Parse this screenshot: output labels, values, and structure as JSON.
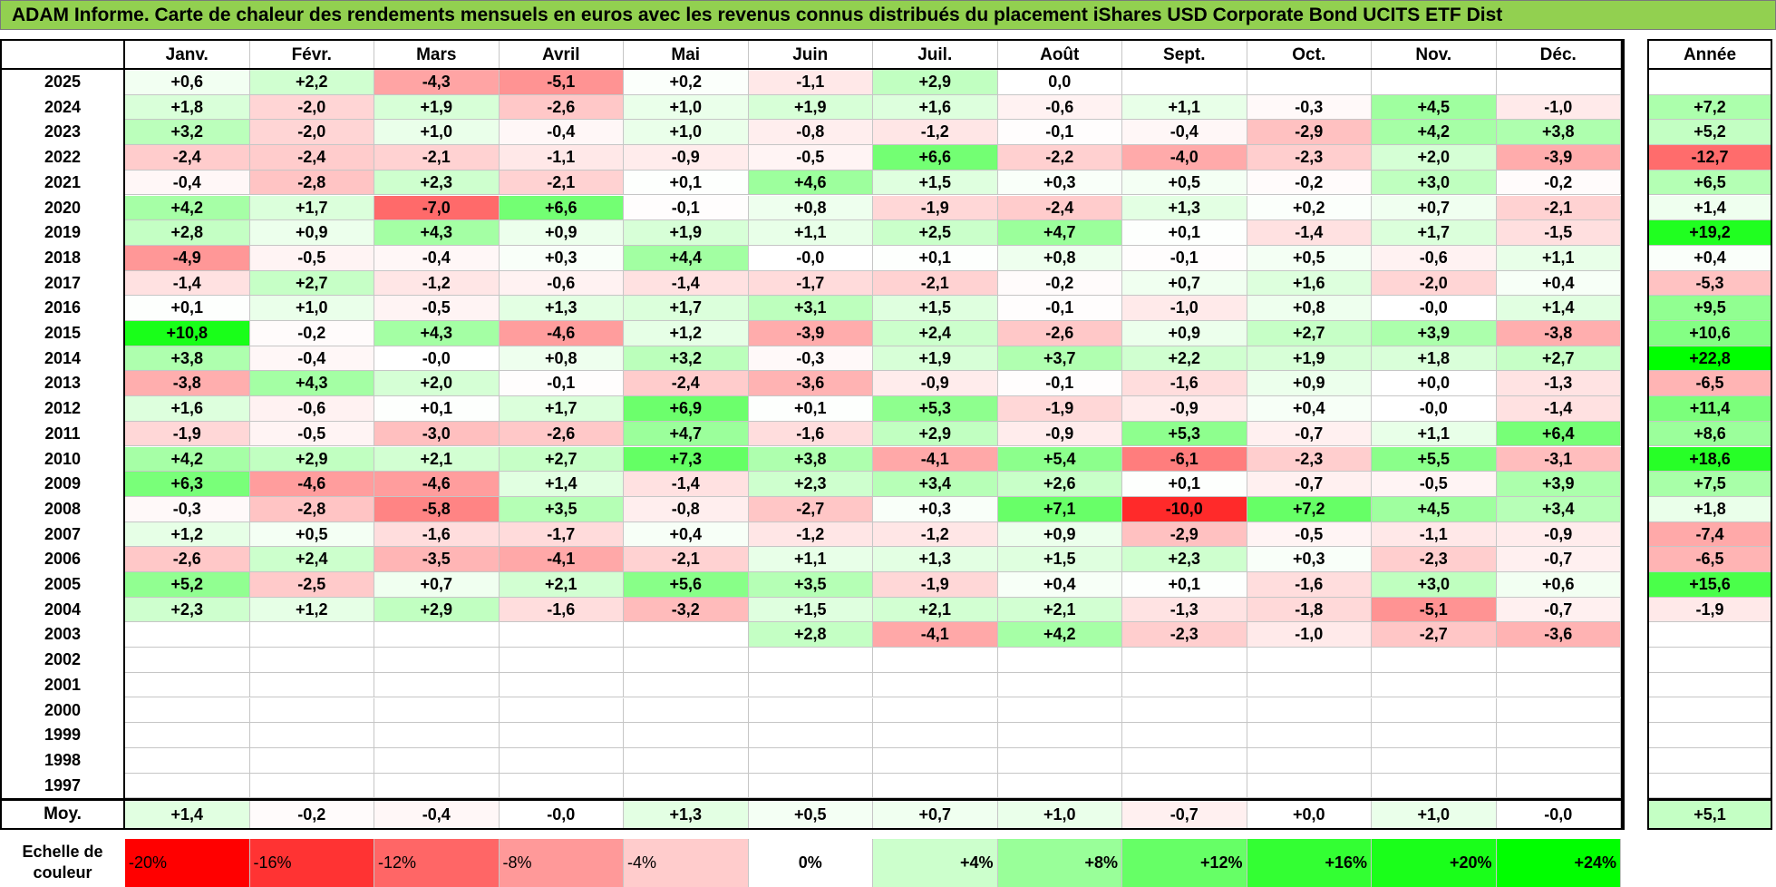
{
  "title": "ADAM Informe. Carte de chaleur des rendements mensuels en euros avec les revenus connus distribués du placement iShares USD Corporate Bond UCITS ETF Dist",
  "chart_data": {
    "type": "heatmap",
    "title": "ADAM Informe. Carte de chaleur des rendements mensuels en euros avec les revenus connus distribués du placement iShares USD Corporate Bond UCITS ETF Dist",
    "months": [
      "Janv.",
      "Févr.",
      "Mars",
      "Avril",
      "Mai",
      "Juin",
      "Juil.",
      "Août",
      "Sept.",
      "Oct.",
      "Nov.",
      "Déc."
    ],
    "year_header": "Année",
    "avg_label": "Moy.",
    "rows": [
      {
        "year": "2025",
        "values": [
          "+0,6",
          "+2,2",
          "-4,3",
          "-5,1",
          "+0,2",
          "-1,1",
          "+2,9",
          "0,0",
          "",
          "",
          "",
          ""
        ],
        "annual": ""
      },
      {
        "year": "2024",
        "values": [
          "+1,8",
          "-2,0",
          "+1,9",
          "-2,6",
          "+1,0",
          "+1,9",
          "+1,6",
          "-0,6",
          "+1,1",
          "-0,3",
          "+4,5",
          "-1,0"
        ],
        "annual": "+7,2"
      },
      {
        "year": "2023",
        "values": [
          "+3,2",
          "-2,0",
          "+1,0",
          "-0,4",
          "+1,0",
          "-0,8",
          "-1,2",
          "-0,1",
          "-0,4",
          "-2,9",
          "+4,2",
          "+3,8"
        ],
        "annual": "+5,2"
      },
      {
        "year": "2022",
        "values": [
          "-2,4",
          "-2,4",
          "-2,1",
          "-1,1",
          "-0,9",
          "-0,5",
          "+6,6",
          "-2,2",
          "-4,0",
          "-2,3",
          "+2,0",
          "-3,9"
        ],
        "annual": "-12,7"
      },
      {
        "year": "2021",
        "values": [
          "-0,4",
          "-2,8",
          "+2,3",
          "-2,1",
          "+0,1",
          "+4,6",
          "+1,5",
          "+0,3",
          "+0,5",
          "-0,2",
          "+3,0",
          "-0,2"
        ],
        "annual": "+6,5"
      },
      {
        "year": "2020",
        "values": [
          "+4,2",
          "+1,7",
          "-7,0",
          "+6,6",
          "-0,1",
          "+0,8",
          "-1,9",
          "-2,4",
          "+1,3",
          "+0,2",
          "+0,7",
          "-2,1"
        ],
        "annual": "+1,4"
      },
      {
        "year": "2019",
        "values": [
          "+2,8",
          "+0,9",
          "+4,3",
          "+0,9",
          "+1,9",
          "+1,1",
          "+2,5",
          "+4,7",
          "+0,1",
          "-1,4",
          "+1,7",
          "-1,5"
        ],
        "annual": "+19,2"
      },
      {
        "year": "2018",
        "values": [
          "-4,9",
          "-0,5",
          "-0,4",
          "+0,3",
          "+4,4",
          "-0,0",
          "+0,1",
          "+0,8",
          "-0,1",
          "+0,5",
          "-0,6",
          "+1,1"
        ],
        "annual": "+0,4"
      },
      {
        "year": "2017",
        "values": [
          "-1,4",
          "+2,7",
          "-1,2",
          "-0,6",
          "-1,4",
          "-1,7",
          "-2,1",
          "-0,2",
          "+0,7",
          "+1,6",
          "-2,0",
          "+0,4"
        ],
        "annual": "-5,3"
      },
      {
        "year": "2016",
        "values": [
          "+0,1",
          "+1,0",
          "-0,5",
          "+1,3",
          "+1,7",
          "+3,1",
          "+1,5",
          "-0,1",
          "-1,0",
          "+0,8",
          "-0,0",
          "+1,4"
        ],
        "annual": "+9,5"
      },
      {
        "year": "2015",
        "values": [
          "+10,8",
          "-0,2",
          "+4,3",
          "-4,6",
          "+1,2",
          "-3,9",
          "+2,4",
          "-2,6",
          "+0,9",
          "+2,7",
          "+3,9",
          "-3,8"
        ],
        "annual": "+10,6"
      },
      {
        "year": "2014",
        "values": [
          "+3,8",
          "-0,4",
          "-0,0",
          "+0,8",
          "+3,2",
          "-0,3",
          "+1,9",
          "+3,7",
          "+2,2",
          "+1,9",
          "+1,8",
          "+2,7"
        ],
        "annual": "+22,8"
      },
      {
        "year": "2013",
        "values": [
          "-3,8",
          "+4,3",
          "+2,0",
          "-0,1",
          "-2,4",
          "-3,6",
          "-0,9",
          "-0,1",
          "-1,6",
          "+0,9",
          "+0,0",
          "-1,3"
        ],
        "annual": "-6,5"
      },
      {
        "year": "2012",
        "values": [
          "+1,6",
          "-0,6",
          "+0,1",
          "+1,7",
          "+6,9",
          "+0,1",
          "+5,3",
          "-1,9",
          "-0,9",
          "+0,4",
          "-0,0",
          "-1,4"
        ],
        "annual": "+11,4"
      },
      {
        "year": "2011",
        "values": [
          "-1,9",
          "-0,5",
          "-3,0",
          "-2,6",
          "+4,7",
          "-1,6",
          "+2,9",
          "-0,9",
          "+5,3",
          "-0,7",
          "+1,1",
          "+6,4"
        ],
        "annual": "+8,6"
      },
      {
        "year": "2010",
        "values": [
          "+4,2",
          "+2,9",
          "+2,1",
          "+2,7",
          "+7,3",
          "+3,8",
          "-4,1",
          "+5,4",
          "-6,1",
          "-2,3",
          "+5,5",
          "-3,1"
        ],
        "annual": "+18,6"
      },
      {
        "year": "2009",
        "values": [
          "+6,3",
          "-4,6",
          "-4,6",
          "+1,4",
          "-1,4",
          "+2,3",
          "+3,4",
          "+2,6",
          "+0,1",
          "-0,7",
          "-0,5",
          "+3,9"
        ],
        "annual": "+7,5"
      },
      {
        "year": "2008",
        "values": [
          "-0,3",
          "-2,8",
          "-5,8",
          "+3,5",
          "-0,8",
          "-2,7",
          "+0,3",
          "+7,1",
          "-10,0",
          "+7,2",
          "+4,5",
          "+3,4"
        ],
        "annual": "+1,8"
      },
      {
        "year": "2007",
        "values": [
          "+1,2",
          "+0,5",
          "-1,6",
          "-1,7",
          "+0,4",
          "-1,2",
          "-1,2",
          "+0,9",
          "-2,9",
          "-0,5",
          "-1,1",
          "-0,9"
        ],
        "annual": "-7,4"
      },
      {
        "year": "2006",
        "values": [
          "-2,6",
          "+2,4",
          "-3,5",
          "-4,1",
          "-2,1",
          "+1,1",
          "+1,3",
          "+1,5",
          "+2,3",
          "+0,3",
          "-2,3",
          "-0,7"
        ],
        "annual": "-6,5"
      },
      {
        "year": "2005",
        "values": [
          "+5,2",
          "-2,5",
          "+0,7",
          "+2,1",
          "+5,6",
          "+3,5",
          "-1,9",
          "+0,4",
          "+0,1",
          "-1,6",
          "+3,0",
          "+0,6"
        ],
        "annual": "+15,6"
      },
      {
        "year": "2004",
        "values": [
          "+2,3",
          "+1,2",
          "+2,9",
          "-1,6",
          "-3,2",
          "+1,5",
          "+2,1",
          "+2,1",
          "-1,3",
          "-1,8",
          "-5,1",
          "-0,7"
        ],
        "annual": "-1,9"
      },
      {
        "year": "2003",
        "values": [
          "",
          "",
          "",
          "",
          "",
          "+2,8",
          "-4,1",
          "+4,2",
          "-2,3",
          "-1,0",
          "-2,7",
          "-3,6"
        ],
        "annual": ""
      },
      {
        "year": "2002",
        "values": [
          "",
          "",
          "",
          "",
          "",
          "",
          "",
          "",
          "",
          "",
          "",
          ""
        ],
        "annual": ""
      },
      {
        "year": "2001",
        "values": [
          "",
          "",
          "",
          "",
          "",
          "",
          "",
          "",
          "",
          "",
          "",
          ""
        ],
        "annual": ""
      },
      {
        "year": "2000",
        "values": [
          "",
          "",
          "",
          "",
          "",
          "",
          "",
          "",
          "",
          "",
          "",
          ""
        ],
        "annual": ""
      },
      {
        "year": "1999",
        "values": [
          "",
          "",
          "",
          "",
          "",
          "",
          "",
          "",
          "",
          "",
          "",
          ""
        ],
        "annual": ""
      },
      {
        "year": "1998",
        "values": [
          "",
          "",
          "",
          "",
          "",
          "",
          "",
          "",
          "",
          "",
          "",
          ""
        ],
        "annual": ""
      },
      {
        "year": "1997",
        "values": [
          "",
          "",
          "",
          "",
          "",
          "",
          "",
          "",
          "",
          "",
          "",
          ""
        ],
        "annual": ""
      }
    ],
    "averages": {
      "values": [
        "+1,4",
        "-0,2",
        "-0,4",
        "-0,0",
        "+1,3",
        "+0,5",
        "+0,7",
        "+1,0",
        "-0,7",
        "+0,0",
        "+1,0",
        "-0,0"
      ],
      "annual": "+5,1"
    },
    "color_scale": {
      "title_line1": "Echelle de",
      "title_line2": "couleur",
      "stops": [
        {
          "label": "-20%",
          "value": -20,
          "color": "#ff0000"
        },
        {
          "label": "-16%",
          "value": -16,
          "color": "#ff3333"
        },
        {
          "label": "-12%",
          "value": -12,
          "color": "#ff6666"
        },
        {
          "label": "-8%",
          "value": -8,
          "color": "#ff9999"
        },
        {
          "label": "-4%",
          "value": -4,
          "color": "#ffcccc"
        },
        {
          "label": "0%",
          "value": 0,
          "color": "#ffffff"
        },
        {
          "label": "+4%",
          "value": 4,
          "color": "#ccffcc"
        },
        {
          "label": "+8%",
          "value": 8,
          "color": "#99ff99"
        },
        {
          "label": "+12%",
          "value": 12,
          "color": "#66ff66"
        },
        {
          "label": "+16%",
          "value": 16,
          "color": "#33ff33"
        },
        {
          "label": "+20%",
          "value": 20,
          "color": "#1aff1a"
        },
        {
          "label": "+24%",
          "value": 24,
          "color": "#00ff00"
        }
      ]
    }
  }
}
